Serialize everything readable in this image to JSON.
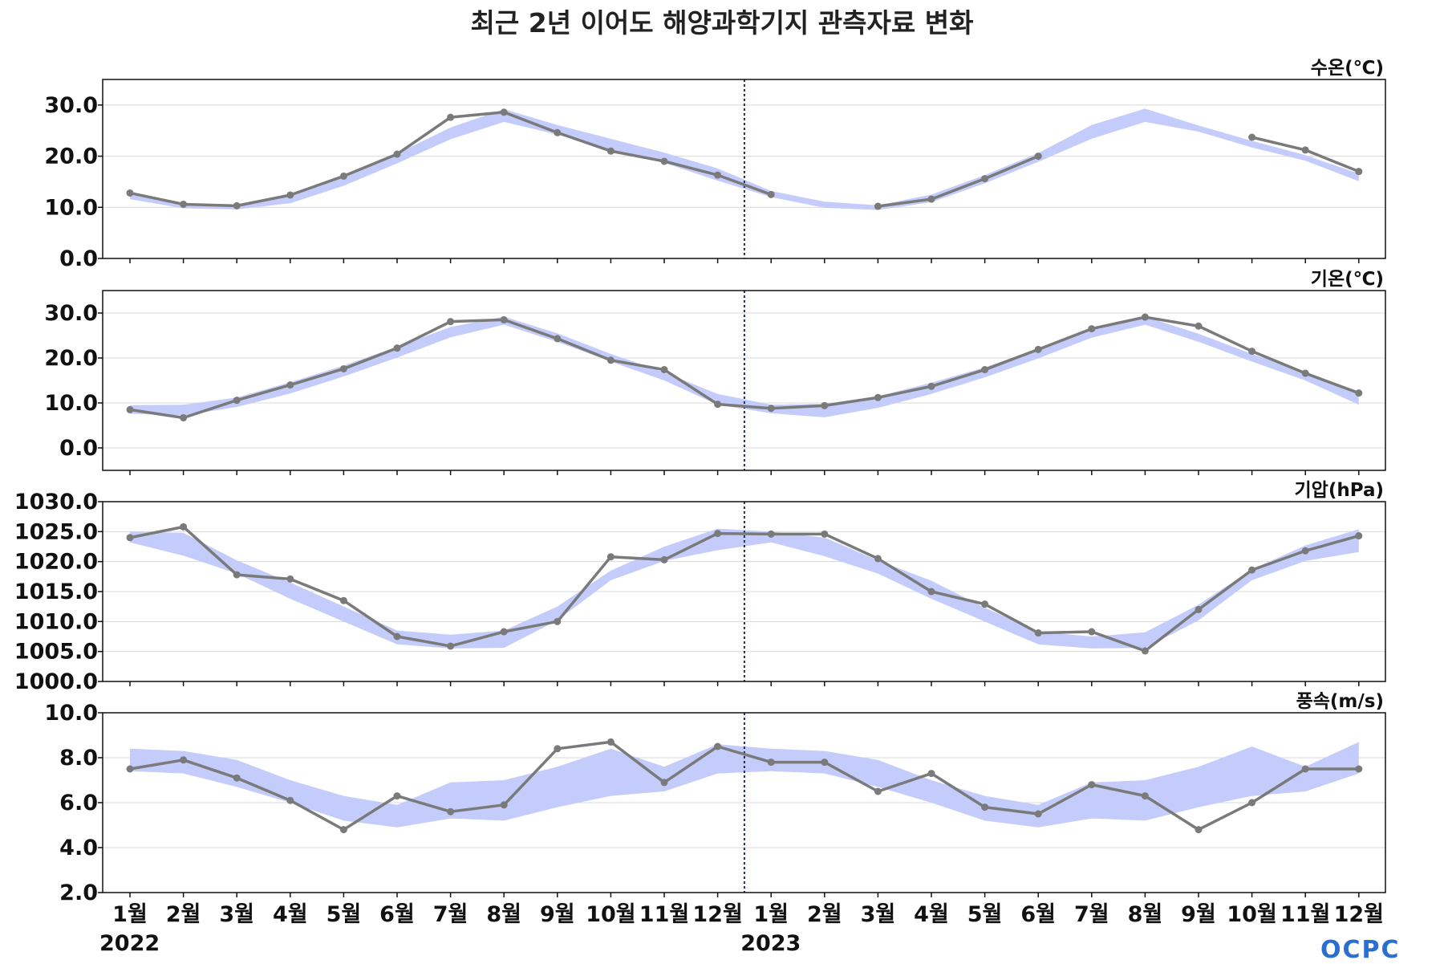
{
  "title": "최근 2년 이어도 해양과학기지 관측자료 변화",
  "logo": "OCPC",
  "colors": {
    "band": "#c3ccfb",
    "line": "#7a7a7a",
    "marker": "#7a7a7a",
    "grid": "#d8d8d8",
    "divider": "#1f2d5a",
    "logo": "#2a6fcf"
  },
  "x_axis": {
    "months": [
      "1월",
      "2월",
      "3월",
      "4월",
      "5월",
      "6월",
      "7월",
      "8월",
      "9월",
      "10월",
      "11월",
      "12월",
      "1월",
      "2월",
      "3월",
      "4월",
      "5월",
      "6월",
      "7월",
      "8월",
      "9월",
      "10월",
      "11월",
      "12월"
    ],
    "years": [
      {
        "label": "2022",
        "index": 0
      },
      {
        "label": "2023",
        "index": 12
      }
    ]
  },
  "chart_data": [
    {
      "type": "line",
      "label": "수온(℃)",
      "ylim": [
        0,
        35
      ],
      "yticks": [
        "0.0",
        "10.0",
        "20.0",
        "30.0"
      ],
      "ytick_values": [
        0,
        10,
        20,
        30
      ],
      "grid": true,
      "divider_between": [
        11,
        12
      ],
      "series": [
        {
          "values": [
            12.8,
            10.6,
            10.3,
            12.4,
            16.1,
            20.4,
            27.6,
            28.6,
            24.6,
            21.0,
            19.0,
            16.3,
            12.5,
            null,
            10.2,
            11.6,
            15.6,
            20.0,
            null,
            null,
            null,
            23.7,
            21.2,
            17.0
          ]
        }
      ],
      "band_upper": [
        12.8,
        10.8,
        10.4,
        12.3,
        15.8,
        20.5,
        25.6,
        29.2,
        26.1,
        23.4,
        20.7,
        17.6,
        13.2,
        11.1,
        10.4,
        12.5,
        16.3,
        20.6,
        26.1,
        29.3,
        26.0,
        23.0,
        20.2,
        16.6
      ],
      "band_lower": [
        11.6,
        9.8,
        9.6,
        10.8,
        14.2,
        18.6,
        23.3,
        26.7,
        24.2,
        21.3,
        18.7,
        15.2,
        12.0,
        9.9,
        9.5,
        11.0,
        14.7,
        18.9,
        23.4,
        26.7,
        24.8,
        21.7,
        19.1,
        15.1
      ]
    },
    {
      "type": "line",
      "label": "기온(℃)",
      "ylim": [
        -5,
        35
      ],
      "yticks": [
        "0.0",
        "10.0",
        "20.0",
        "30.0"
      ],
      "ytick_values": [
        0,
        10,
        20,
        30
      ],
      "grid": true,
      "divider_between": [
        11,
        12
      ],
      "series": [
        {
          "values": [
            8.5,
            6.7,
            10.6,
            14.0,
            17.6,
            22.2,
            28.1,
            28.5,
            24.3,
            19.5,
            17.4,
            9.7,
            8.8,
            9.4,
            11.2,
            13.7,
            17.4,
            21.9,
            26.5,
            29.1,
            27.1,
            21.5,
            16.6,
            12.2
          ]
        },
        {
          "values": [
            8.5,
            6.7,
            10.6,
            14.0,
            17.6,
            22.2,
            28.1,
            28.5,
            24.3,
            19.5,
            17.4,
            9.7,
            8.8,
            9.4,
            11.2,
            13.7,
            17.4,
            21.9,
            26.5,
            29.1,
            27.1,
            21.5,
            16.6,
            12.2
          ]
        }
      ],
      "band_upper": [
        9.5,
        9.6,
        11.2,
        14.6,
        18.3,
        22.5,
        26.9,
        29.2,
        25.5,
        20.9,
        16.8,
        12.0,
        9.6,
        9.8,
        11.5,
        14.5,
        17.9,
        22.1,
        26.4,
        29.2,
        25.4,
        20.9,
        17.0,
        11.9
      ],
      "band_lower": [
        7.6,
        7.2,
        9.1,
        12.1,
        15.9,
        20.1,
        24.6,
        27.4,
        23.6,
        19.2,
        15.0,
        9.6,
        7.7,
        6.8,
        8.9,
        12.0,
        15.7,
        19.9,
        24.5,
        27.4,
        23.6,
        19.2,
        15.0,
        9.6
      ]
    },
    {
      "type": "line",
      "label": "기압(hPa)",
      "ylim": [
        1000,
        1030
      ],
      "yticks": [
        "1000.0",
        "1005.0",
        "1010.0",
        "1015.0",
        "1020.0",
        "1025.0",
        "1030.0"
      ],
      "ytick_values": [
        1000,
        1005,
        1010,
        1015,
        1020,
        1025,
        1030
      ],
      "grid": true,
      "divider_between": [
        11,
        12
      ],
      "series": [
        {
          "values": [
            1024.0,
            1025.8,
            1017.8,
            1017.1,
            1013.5,
            1007.5,
            1005.9,
            1008.3,
            1010.0,
            1020.8,
            1020.3,
            1024.7,
            1024.6,
            1024.6,
            1020.5,
            1015.0,
            1012.9,
            1008.1,
            1008.3,
            1005.1,
            1012.0,
            1018.6,
            1021.8,
            1024.3
          ]
        }
      ],
      "band_upper": [
        1025.0,
        1024.8,
        1020.2,
        1016.5,
        1012.5,
        1008.5,
        1007.8,
        1008.5,
        1012.5,
        1018.5,
        1022.5,
        1025.5,
        1025.0,
        1024.0,
        1020.2,
        1016.8,
        1012.3,
        1008.3,
        1007.5,
        1008.2,
        1012.8,
        1018.7,
        1022.7,
        1025.4
      ],
      "band_lower": [
        1023.2,
        1021.0,
        1018.0,
        1013.8,
        1010.0,
        1006.2,
        1005.5,
        1005.6,
        1010.2,
        1016.9,
        1020.1,
        1021.9,
        1023.2,
        1020.9,
        1018.0,
        1013.8,
        1010.0,
        1006.2,
        1005.5,
        1005.6,
        1010.2,
        1016.9,
        1020.1,
        1021.6
      ]
    },
    {
      "type": "line",
      "label": "풍속(m/s)",
      "ylim": [
        2,
        10
      ],
      "yticks": [
        "2.0",
        "4.0",
        "6.0",
        "8.0",
        "10.0"
      ],
      "ytick_values": [
        2,
        4,
        6,
        8,
        10
      ],
      "grid": true,
      "divider_between": [
        11,
        12
      ],
      "series": [
        {
          "values": [
            7.5,
            7.9,
            7.1,
            6.1,
            4.8,
            6.3,
            5.6,
            5.9,
            8.4,
            8.7,
            6.9,
            8.5,
            7.8,
            7.8,
            6.5,
            7.3,
            5.8,
            5.5,
            6.8,
            6.3,
            4.8,
            6.0,
            7.5,
            7.5
          ]
        }
      ],
      "band_upper": [
        8.4,
        8.3,
        7.9,
        7.0,
        6.3,
        5.9,
        6.9,
        7.0,
        7.6,
        8.4,
        7.6,
        8.6,
        8.4,
        8.3,
        7.9,
        7.0,
        6.3,
        5.9,
        6.9,
        7.0,
        7.6,
        8.5,
        7.6,
        8.7
      ],
      "band_lower": [
        7.4,
        7.3,
        6.7,
        6.0,
        5.2,
        4.9,
        5.3,
        5.2,
        5.8,
        6.3,
        6.5,
        7.3,
        7.4,
        7.3,
        6.7,
        6.0,
        5.2,
        4.9,
        5.3,
        5.2,
        5.8,
        6.3,
        6.5,
        7.3
      ]
    }
  ]
}
